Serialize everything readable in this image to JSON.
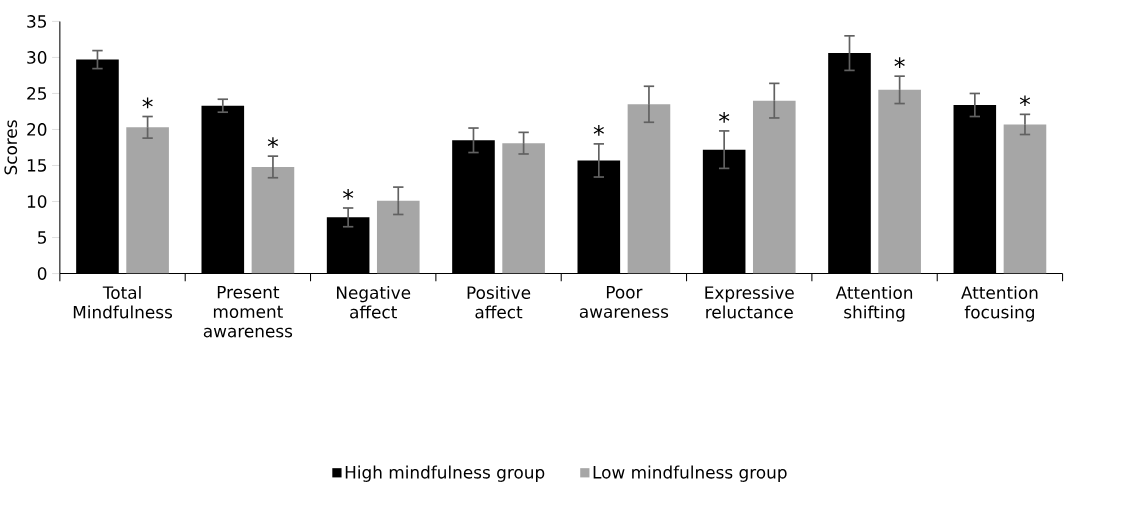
{
  "chart_data": {
    "type": "bar",
    "ylabel": "Scores",
    "categories": [
      "Total Mindfulness",
      "Present moment awareness",
      "Negative affect",
      "Positive affect",
      "Poor awareness",
      "Expressive reluctance",
      "Attention shifting",
      "Attention focusing"
    ],
    "series": [
      {
        "name": "High mindfulness group",
        "color": "#000000",
        "values": [
          29.7,
          23.3,
          7.8,
          18.5,
          15.7,
          17.2,
          30.6,
          23.4
        ],
        "errors": [
          1.25,
          0.9,
          1.3,
          1.7,
          2.3,
          2.6,
          2.4,
          1.6
        ]
      },
      {
        "name": "Low mindfulness group",
        "color": "#a6a6a6",
        "values": [
          20.3,
          14.8,
          10.1,
          18.1,
          23.5,
          24.0,
          25.5,
          20.7
        ],
        "errors": [
          1.5,
          1.5,
          1.9,
          1.5,
          2.5,
          2.4,
          1.9,
          1.4
        ]
      }
    ],
    "ylim": [
      0,
      35
    ],
    "yticks": [
      0,
      5,
      10,
      15,
      20,
      25,
      30,
      35
    ],
    "grid": false,
    "legend": "bottom",
    "annotations": [
      {
        "text": "*",
        "x": "Total Mindfulness",
        "y": 20.3
      },
      {
        "text": "*",
        "x": "Present moment awareness",
        "y": 14.8
      },
      {
        "text": "*",
        "x": "Negative affect",
        "y": 7.8
      },
      {
        "text": "*",
        "x": "Poor awareness",
        "y": 15.7
      },
      {
        "text": "*",
        "x": "Expressive reluctance",
        "y": 17.2
      },
      {
        "text": "*",
        "x": "Attention shifting",
        "y": 25.5
      },
      {
        "text": "*",
        "x": "Attention focusing",
        "y": 20.7
      }
    ]
  }
}
